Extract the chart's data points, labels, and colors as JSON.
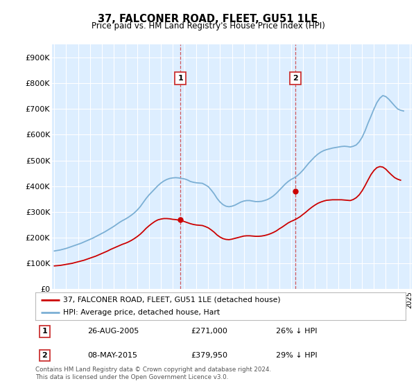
{
  "title": "37, FALCONER ROAD, FLEET, GU51 1LE",
  "subtitle": "Price paid vs. HM Land Registry's House Price Index (HPI)",
  "hpi_label": "HPI: Average price, detached house, Hart",
  "property_label": "37, FALCONER ROAD, FLEET, GU51 1LE (detached house)",
  "footnote": "Contains HM Land Registry data © Crown copyright and database right 2024.\nThis data is licensed under the Open Government Licence v3.0.",
  "ylim": [
    0,
    950000
  ],
  "yticks": [
    0,
    100000,
    200000,
    300000,
    400000,
    500000,
    600000,
    700000,
    800000,
    900000
  ],
  "ytick_labels": [
    "£0",
    "£100K",
    "£200K",
    "£300K",
    "£400K",
    "£500K",
    "£600K",
    "£700K",
    "£800K",
    "£900K"
  ],
  "hpi_color": "#7bafd4",
  "property_color": "#cc0000",
  "annotation1": {
    "label": "1",
    "date": "26-AUG-2005",
    "price": "£271,000",
    "hpi": "26% ↓ HPI"
  },
  "annotation2": {
    "label": "2",
    "date": "08-MAY-2015",
    "price": "£379,950",
    "hpi": "29% ↓ HPI"
  },
  "hpi_x": [
    1995,
    1995.25,
    1995.5,
    1995.75,
    1996,
    1996.25,
    1996.5,
    1996.75,
    1997,
    1997.25,
    1997.5,
    1997.75,
    1998,
    1998.25,
    1998.5,
    1998.75,
    1999,
    1999.25,
    1999.5,
    1999.75,
    2000,
    2000.25,
    2000.5,
    2000.75,
    2001,
    2001.25,
    2001.5,
    2001.75,
    2002,
    2002.25,
    2002.5,
    2002.75,
    2003,
    2003.25,
    2003.5,
    2003.75,
    2004,
    2004.25,
    2004.5,
    2004.75,
    2005,
    2005.25,
    2005.5,
    2005.75,
    2006,
    2006.25,
    2006.5,
    2006.75,
    2007,
    2007.25,
    2007.5,
    2007.75,
    2008,
    2008.25,
    2008.5,
    2008.75,
    2009,
    2009.25,
    2009.5,
    2009.75,
    2010,
    2010.25,
    2010.5,
    2010.75,
    2011,
    2011.25,
    2011.5,
    2011.75,
    2012,
    2012.25,
    2012.5,
    2012.75,
    2013,
    2013.25,
    2013.5,
    2013.75,
    2014,
    2014.25,
    2014.5,
    2014.75,
    2015,
    2015.25,
    2015.5,
    2015.75,
    2016,
    2016.25,
    2016.5,
    2016.75,
    2017,
    2017.25,
    2017.5,
    2017.75,
    2018,
    2018.25,
    2018.5,
    2018.75,
    2019,
    2019.25,
    2019.5,
    2019.75,
    2020,
    2020.25,
    2020.5,
    2020.75,
    2021,
    2021.25,
    2021.5,
    2021.75,
    2022,
    2022.25,
    2022.5,
    2022.75,
    2023,
    2023.25,
    2023.5,
    2023.75,
    2024,
    2024.25,
    2024.5
  ],
  "hpi_y": [
    148000,
    150000,
    152000,
    155000,
    158000,
    162000,
    166000,
    170000,
    174000,
    178000,
    183000,
    188000,
    193000,
    198000,
    204000,
    210000,
    216000,
    222000,
    229000,
    236000,
    243000,
    251000,
    259000,
    266000,
    272000,
    279000,
    287000,
    296000,
    307000,
    320000,
    336000,
    352000,
    366000,
    378000,
    390000,
    402000,
    412000,
    420000,
    426000,
    430000,
    432000,
    433000,
    432000,
    430000,
    428000,
    424000,
    418000,
    415000,
    413000,
    412000,
    411000,
    405000,
    398000,
    385000,
    370000,
    352000,
    338000,
    328000,
    322000,
    320000,
    322000,
    326000,
    332000,
    338000,
    342000,
    344000,
    344000,
    342000,
    340000,
    340000,
    341000,
    344000,
    348000,
    354000,
    362000,
    372000,
    384000,
    396000,
    408000,
    418000,
    426000,
    432000,
    440000,
    450000,
    462000,
    476000,
    490000,
    502000,
    514000,
    524000,
    532000,
    538000,
    542000,
    545000,
    548000,
    550000,
    552000,
    554000,
    555000,
    554000,
    552000,
    555000,
    560000,
    572000,
    590000,
    615000,
    645000,
    672000,
    700000,
    725000,
    742000,
    752000,
    748000,
    738000,
    725000,
    712000,
    700000,
    695000,
    692000
  ],
  "prop_x": [
    1995,
    1995.25,
    1995.5,
    1995.75,
    1996,
    1996.25,
    1996.5,
    1996.75,
    1997,
    1997.25,
    1997.5,
    1997.75,
    1998,
    1998.25,
    1998.5,
    1998.75,
    1999,
    1999.25,
    1999.5,
    1999.75,
    2000,
    2000.25,
    2000.5,
    2000.75,
    2001,
    2001.25,
    2001.5,
    2001.75,
    2002,
    2002.25,
    2002.5,
    2002.75,
    2003,
    2003.25,
    2003.5,
    2003.75,
    2004,
    2004.25,
    2004.5,
    2004.75,
    2005,
    2005.25,
    2005.5,
    2005.75,
    2006,
    2006.25,
    2006.5,
    2006.75,
    2007,
    2007.25,
    2007.5,
    2007.75,
    2008,
    2008.25,
    2008.5,
    2008.75,
    2009,
    2009.25,
    2009.5,
    2009.75,
    2010,
    2010.25,
    2010.5,
    2010.75,
    2011,
    2011.25,
    2011.5,
    2011.75,
    2012,
    2012.25,
    2012.5,
    2012.75,
    2013,
    2013.25,
    2013.5,
    2013.75,
    2014,
    2014.25,
    2014.5,
    2014.75,
    2015,
    2015.25,
    2015.5,
    2015.75,
    2016,
    2016.25,
    2016.5,
    2016.75,
    2017,
    2017.25,
    2017.5,
    2017.75,
    2018,
    2018.25,
    2018.5,
    2018.75,
    2019,
    2019.25,
    2019.5,
    2019.75,
    2020,
    2020.25,
    2020.5,
    2020.75,
    2021,
    2021.25,
    2021.5,
    2021.75,
    2022,
    2022.25,
    2022.5,
    2022.75,
    2023,
    2023.25,
    2023.5,
    2023.75,
    2024,
    2024.25
  ],
  "prop_y": [
    90000,
    91000,
    92000,
    94000,
    96000,
    98000,
    100000,
    103000,
    106000,
    109000,
    112000,
    116000,
    120000,
    124000,
    128000,
    133000,
    138000,
    143000,
    148000,
    154000,
    159000,
    164000,
    169000,
    174000,
    178000,
    183000,
    189000,
    196000,
    204000,
    213000,
    224000,
    236000,
    246000,
    255000,
    263000,
    269000,
    272000,
    274000,
    274000,
    273000,
    271000,
    270000,
    268000,
    266000,
    262000,
    258000,
    254000,
    251000,
    249000,
    248000,
    247000,
    243000,
    238000,
    230000,
    221000,
    210000,
    202000,
    196000,
    193000,
    192000,
    194000,
    197000,
    200000,
    203000,
    206000,
    207000,
    207000,
    206000,
    205000,
    205000,
    206000,
    208000,
    211000,
    215000,
    220000,
    226000,
    234000,
    241000,
    249000,
    257000,
    263000,
    268000,
    274000,
    281000,
    290000,
    299000,
    309000,
    318000,
    326000,
    333000,
    338000,
    342000,
    345000,
    346000,
    347000,
    347000,
    347000,
    347000,
    346000,
    345000,
    344000,
    348000,
    355000,
    366000,
    382000,
    402000,
    424000,
    445000,
    461000,
    472000,
    476000,
    474000,
    466000,
    454000,
    443000,
    433000,
    427000,
    423000
  ],
  "sale1_x": 2005.65,
  "sale1_y": 271000,
  "sale2_x": 2015.35,
  "sale2_y": 379950,
  "xlim": [
    1994.8,
    2025.2
  ],
  "bg_color": "#ddeeff",
  "ann_box_color": "#cc3333"
}
